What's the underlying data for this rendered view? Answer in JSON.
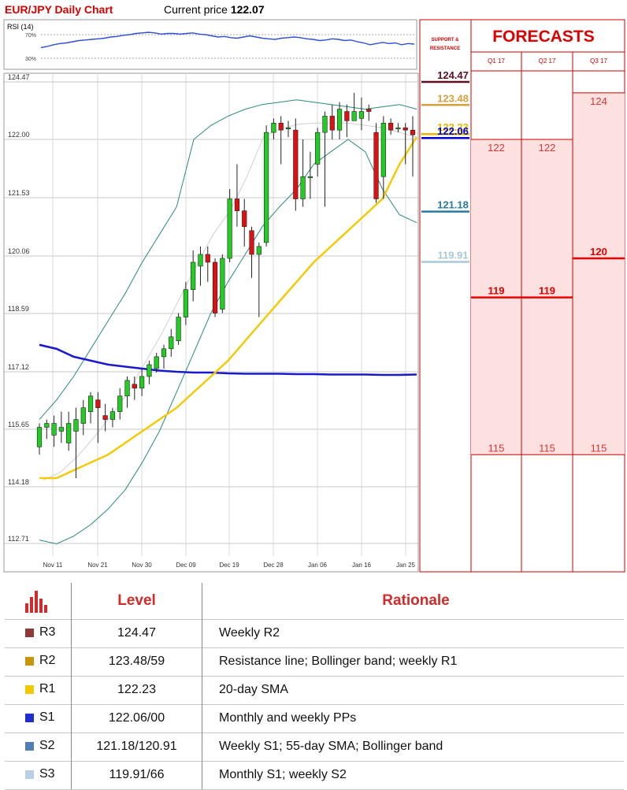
{
  "header": {
    "title": "EUR/JPY Daily Chart",
    "price_label": "Current price",
    "price_value": "122.07"
  },
  "rsi": {
    "label": "RSI (14)",
    "level_high": "70%",
    "level_low": "30%",
    "values": [
      48,
      50,
      53,
      55,
      56,
      58,
      60,
      61,
      62,
      63,
      64,
      66,
      67,
      69,
      70,
      72,
      73,
      74,
      73,
      71,
      72,
      72,
      71,
      72,
      73,
      71,
      70,
      68,
      66,
      67,
      65,
      64,
      66,
      68,
      66,
      64,
      63,
      62,
      64,
      65,
      66,
      65,
      63,
      62,
      60,
      61,
      63,
      62,
      60,
      61,
      58,
      56,
      53,
      55,
      57,
      55,
      56,
      53,
      55,
      54
    ]
  },
  "chart_data": {
    "type": "candlestick",
    "x_tick_labels": [
      "Nov 11",
      "Nov 21",
      "Nov 30",
      "Dec 09",
      "Dec 19",
      "Dec 28",
      "Jan 06",
      "Jan 16",
      "Jan 25"
    ],
    "y_tick_labels": [
      "124.47",
      "122.00",
      "121.53",
      "120.06",
      "118.59",
      "117.12",
      "115.65",
      "114.18",
      "112.71"
    ],
    "ylim": [
      112.71,
      124.47
    ],
    "colors": {
      "up": "#22cc22",
      "down": "#dd1111",
      "sma20": "#f5c800",
      "sma55": "#1a1acc",
      "bollinger": "#2a8a7a",
      "mid": "#d0d0d0"
    },
    "candles": [
      [
        115.2,
        115.7,
        115.0,
        115.8
      ],
      [
        115.7,
        115.8,
        115.4,
        115.9
      ],
      [
        115.5,
        115.8,
        115.2,
        116.0
      ],
      [
        115.6,
        115.7,
        115.3,
        116.1
      ],
      [
        115.3,
        115.8,
        115.1,
        116.1
      ],
      [
        115.6,
        115.9,
        114.4,
        116.2
      ],
      [
        115.8,
        116.2,
        115.5,
        116.4
      ],
      [
        116.1,
        116.5,
        115.8,
        116.6
      ],
      [
        116.4,
        116.2,
        115.3,
        116.6
      ],
      [
        116.0,
        115.9,
        115.6,
        116.3
      ],
      [
        115.9,
        116.1,
        115.7,
        116.2
      ],
      [
        116.1,
        116.5,
        115.9,
        116.7
      ],
      [
        116.5,
        116.9,
        116.2,
        117.0
      ],
      [
        116.8,
        116.7,
        116.4,
        117.0
      ],
      [
        116.7,
        117.0,
        116.5,
        117.2
      ],
      [
        117.0,
        117.3,
        116.8,
        117.4
      ],
      [
        117.2,
        117.5,
        117.1,
        117.6
      ],
      [
        117.5,
        117.7,
        117.2,
        117.8
      ],
      [
        117.7,
        118.0,
        117.5,
        118.2
      ],
      [
        117.9,
        118.5,
        117.8,
        118.6
      ],
      [
        118.5,
        119.2,
        118.3,
        119.4
      ],
      [
        119.2,
        119.9,
        118.9,
        120.2
      ],
      [
        119.8,
        120.1,
        119.3,
        120.3
      ],
      [
        120.1,
        119.9,
        119.4,
        120.3
      ],
      [
        119.9,
        118.6,
        118.5,
        120.0
      ],
      [
        118.7,
        120.0,
        118.6,
        120.1
      ],
      [
        120.0,
        121.5,
        119.9,
        121.6
      ],
      [
        121.5,
        121.2,
        120.8,
        121.8
      ],
      [
        121.2,
        120.8,
        120.3,
        121.5
      ],
      [
        120.7,
        120.1,
        119.5,
        120.8
      ],
      [
        120.1,
        120.3,
        118.5,
        120.4
      ],
      [
        120.4,
        122.3,
        120.3,
        122.6
      ],
      [
        122.3,
        122.7,
        122.0,
        122.9
      ],
      [
        122.7,
        122.4,
        121.8,
        123.0
      ],
      [
        122.5,
        122.5,
        122.1,
        122.8
      ],
      [
        122.4,
        121.5,
        121.2,
        122.9
      ],
      [
        121.5,
        121.7,
        121.3,
        122.0
      ],
      [
        121.7,
        121.7,
        121.5,
        121.9
      ],
      [
        121.8,
        122.3,
        121.7,
        122.5
      ],
      [
        122.3,
        123.0,
        121.3,
        123.2
      ],
      [
        123.0,
        122.4,
        122.0,
        123.5
      ],
      [
        122.4,
        123.3,
        122.0,
        123.6
      ],
      [
        123.2,
        122.8,
        122.1,
        123.5
      ],
      [
        122.8,
        123.2,
        122.9,
        124.0
      ],
      [
        122.9,
        123.2,
        122.4,
        123.8
      ],
      [
        123.3,
        123.2,
        122.8,
        123.5
      ],
      [
        122.3,
        121.5,
        121.4,
        122.7
      ],
      [
        121.7,
        122.7,
        121.5,
        123.0
      ],
      [
        122.7,
        122.4,
        122.2,
        122.9
      ],
      [
        122.5,
        122.5,
        122.3,
        122.7
      ],
      [
        122.5,
        122.4,
        121.8,
        122.7
      ],
      [
        122.4,
        122.2,
        121.7,
        123.0
      ]
    ],
    "sma20": [
      114.4,
      114.4,
      114.6,
      114.8,
      115.0,
      115.3,
      115.6,
      115.9,
      116.2,
      116.6,
      117.0,
      117.4,
      117.9,
      118.4,
      118.9,
      119.4,
      119.9,
      120.3,
      120.7,
      121.1,
      121.5,
      121.8,
      122.1
    ],
    "sma55": [
      117.8,
      117.7,
      117.5,
      117.4,
      117.3,
      117.25,
      117.2,
      117.15,
      117.12,
      117.1,
      117.1,
      117.08,
      117.07,
      117.07,
      117.07,
      117.06,
      117.06,
      117.05,
      117.05,
      117.05,
      117.04,
      117.04,
      117.05
    ],
    "bollinger_upper": [
      115.9,
      116.4,
      117.0,
      117.7,
      118.4,
      119.1,
      119.9,
      120.6,
      121.3,
      122.0,
      122.6,
      123.0,
      123.3,
      123.5,
      123.6,
      123.7,
      123.6,
      123.5,
      123.4,
      123.3,
      123.4,
      123.5,
      123.3
    ],
    "bollinger_lower": [
      112.8,
      112.7,
      112.9,
      113.2,
      113.6,
      114.1,
      114.8,
      115.6,
      116.6,
      117.6,
      118.6,
      119.4,
      120.1,
      120.8,
      121.3,
      121.6,
      121.8,
      121.9,
      122.0,
      121.9,
      121.6,
      121.1,
      120.9
    ]
  },
  "support_resistance": {
    "header": "SUPPORT & RESISTANCE",
    "levels": [
      {
        "label": "124.47",
        "value": 124.47,
        "color": "#5a1020"
      },
      {
        "label": "123.48",
        "value": 123.48,
        "color": "#d4a040"
      },
      {
        "label": "122.23",
        "value": 122.23,
        "color": "#e6b800"
      },
      {
        "label": "122.06",
        "value": 122.06,
        "color": "#0000cc"
      },
      {
        "label": "121.18",
        "value": 121.18,
        "color": "#2a7aa0"
      },
      {
        "label": "119.91",
        "value": 119.91,
        "color": "#a8c8d8"
      }
    ]
  },
  "forecasts": {
    "title": "FORECASTS",
    "columns": [
      "Q1 17",
      "Q2 17",
      "Q3 17"
    ],
    "ranges": [
      {
        "high": "122",
        "mid": "119",
        "low": "115",
        "high_value": 122,
        "mid_value": 119,
        "low_value": 115
      },
      {
        "high": "122",
        "mid": "119",
        "low": "115",
        "high_value": 122,
        "mid_value": 119,
        "low_value": 115
      },
      {
        "high": "124",
        "mid": "120",
        "low": "115",
        "high_value": 124,
        "mid_value": 120,
        "low_value": 115
      }
    ]
  },
  "table": {
    "col_level": "Level",
    "col_rationale": "Rationale",
    "rows": [
      {
        "code": "R3",
        "level": "124.47",
        "rationale": "Weekly R2",
        "color": "#8e3a3a"
      },
      {
        "code": "R2",
        "level": "123.48/59",
        "rationale": "Resistance line; Bollinger band; weekly R1",
        "color": "#c8960a"
      },
      {
        "code": "R1",
        "level": "122.23",
        "rationale": "20-day SMA",
        "color": "#f2c800"
      },
      {
        "code": "S1",
        "level": "122.06/00",
        "rationale": "Monthly and weekly PPs",
        "color": "#1f2fcf"
      },
      {
        "code": "S2",
        "level": "121.18/120.91",
        "rationale": "Weekly S1; 55-day SMA; Bollinger band",
        "color": "#4f7fb5"
      },
      {
        "code": "S3",
        "level": "119.91/66",
        "rationale": "Monthly S1; weekly S2",
        "color": "#b8cfe6"
      }
    ]
  }
}
